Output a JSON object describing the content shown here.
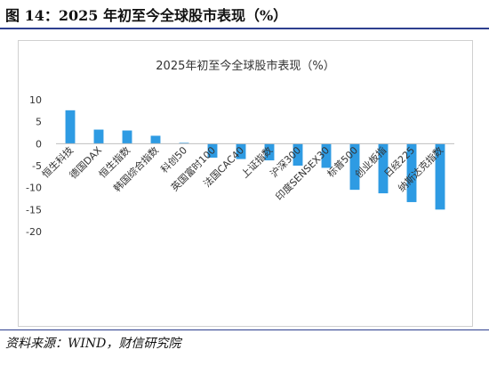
{
  "header": {
    "title": "图 14：2025 年初至今全球股市表现（%）"
  },
  "footer": {
    "source": "资料来源：WIND，财信研究院"
  },
  "colors": {
    "bar": "#2e9be3",
    "rule": "#2e3f8f",
    "axis": "#bfbfbf"
  },
  "chart_data": {
    "type": "bar",
    "title": "2025年初至今全球股市表现（%）",
    "categories": [
      "恒生科技",
      "德国DAX",
      "恒生指数",
      "韩国综合指数",
      "科创50",
      "英国富时100",
      "法国CAC40",
      "上证指数",
      "沪深300",
      "印度SENSEX30",
      "标普500",
      "创业板指",
      "日经225",
      "纳斯达克指数"
    ],
    "values": [
      7.6,
      3.2,
      3.0,
      1.8,
      0.2,
      -3.2,
      -3.5,
      -3.8,
      -5.0,
      -5.5,
      -10.5,
      -11.3,
      -13.3,
      -15.0
    ],
    "ylim": [
      -20,
      10
    ],
    "yticks": [
      10,
      5,
      0,
      -5,
      -10,
      -15,
      -20
    ],
    "grid": false,
    "xlabel": "",
    "ylabel": ""
  }
}
